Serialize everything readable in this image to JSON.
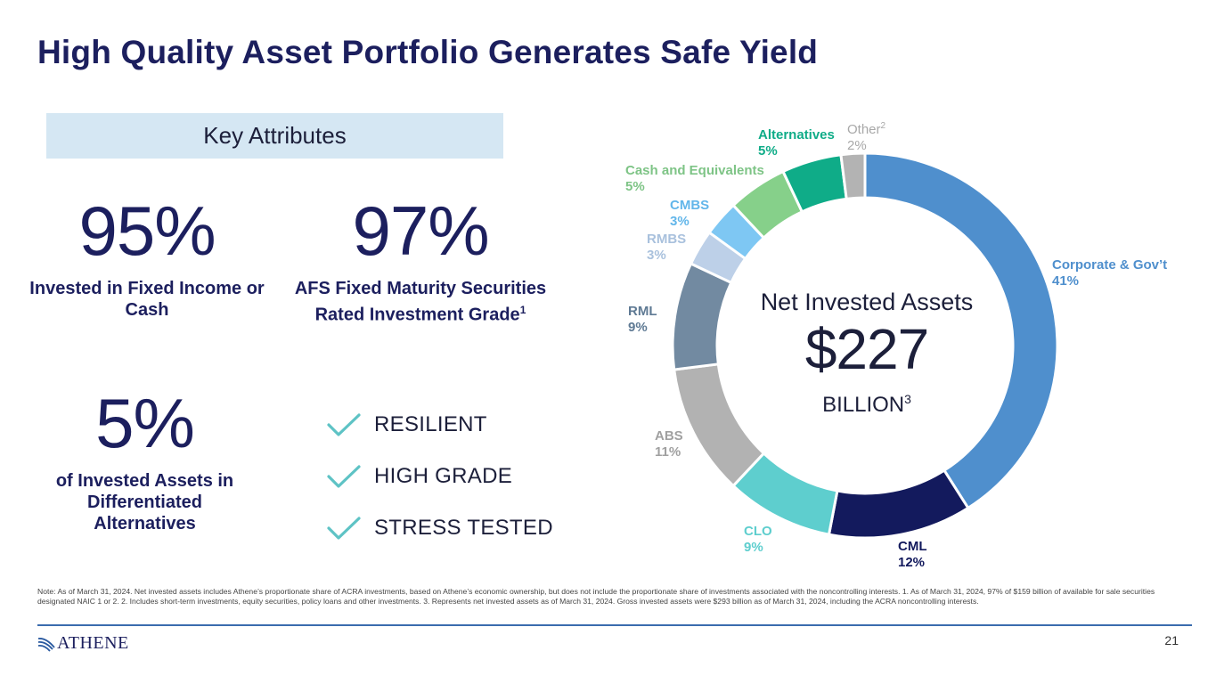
{
  "title": "High Quality Asset Portfolio Generates Safe Yield",
  "key_attributes": {
    "header": "Key Attributes",
    "stats": [
      {
        "value": "95%",
        "label": "Invested in Fixed Income or Cash",
        "sup": ""
      },
      {
        "value": "97%",
        "label": "AFS Fixed Maturity Securities Rated Investment Grade",
        "sup": "1"
      },
      {
        "value": "5%",
        "label": "of Invested Assets in Differentiated Alternatives",
        "sup": ""
      }
    ],
    "checks": [
      "RESILIENT",
      "HIGH GRADE",
      "STRESS TESTED"
    ]
  },
  "chart_data": {
    "type": "pie",
    "donut": true,
    "center": {
      "label": "Net Invested Assets",
      "value": "$227",
      "unit": "BILLION",
      "unit_sup": "3"
    },
    "slices": [
      {
        "name": "Corporate & Gov’t",
        "pct_label": "41%",
        "value": 41,
        "color": "#4f8fcd",
        "label_color": "#4f8fcd",
        "sup": ""
      },
      {
        "name": "CML",
        "pct_label": "12%",
        "value": 12,
        "color": "#131a5d",
        "label_color": "#131a5d",
        "sup": ""
      },
      {
        "name": "CLO",
        "pct_label": "9%",
        "value": 9,
        "color": "#5ecece",
        "label_color": "#5ecece",
        "sup": ""
      },
      {
        "name": "ABS",
        "pct_label": "11%",
        "value": 11,
        "color": "#b2b2b2",
        "label_color": "#a0a0a0",
        "sup": ""
      },
      {
        "name": "RML",
        "pct_label": "9%",
        "value": 9,
        "color": "#728aa1",
        "label_color": "#5f7a94",
        "sup": ""
      },
      {
        "name": "RMBS",
        "pct_label": "3%",
        "value": 3,
        "color": "#bdd0e8",
        "label_color": "#a9c1dd",
        "sup": ""
      },
      {
        "name": "CMBS",
        "pct_label": "3%",
        "value": 3,
        "color": "#7ec7f3",
        "label_color": "#62b6ea",
        "sup": ""
      },
      {
        "name": "Cash and Equivalents",
        "pct_label": "5%",
        "value": 5,
        "color": "#86d08a",
        "label_color": "#7ec486",
        "sup": ""
      },
      {
        "name": "Alternatives",
        "pct_label": "5%",
        "value": 5,
        "color": "#0fac88",
        "label_color": "#0fac88",
        "sup": ""
      },
      {
        "name": "Other",
        "pct_label": "2%",
        "value": 2,
        "color": "#b3b3b3",
        "label_color": "#a8a8a8",
        "sup": "2"
      }
    ]
  },
  "footer": {
    "note": "Note: As of March 31, 2024. Net invested assets includes Athene’s proportionate share of ACRA investments, based on Athene’s economic ownership, but does not include the proportionate share of investments associated with the noncontrolling interests. 1. As of March 31, 2024, 97% of $159 billion of available for sale securities designated NAIC 1 or 2. 2. Includes short-term investments, equity securities, policy loans and other investments. 3. Represents net invested assets as of March 31, 2024. Gross invested assets were $293 billion as of March 31, 2024, including the ACRA noncontrolling interests.",
    "logo": "ATHENE",
    "page_number": "21"
  },
  "colors": {
    "navy": "#1c1f5e",
    "check": "#5ec3c5",
    "key_box": "#d5e7f3",
    "rule": "#3b6cae"
  }
}
